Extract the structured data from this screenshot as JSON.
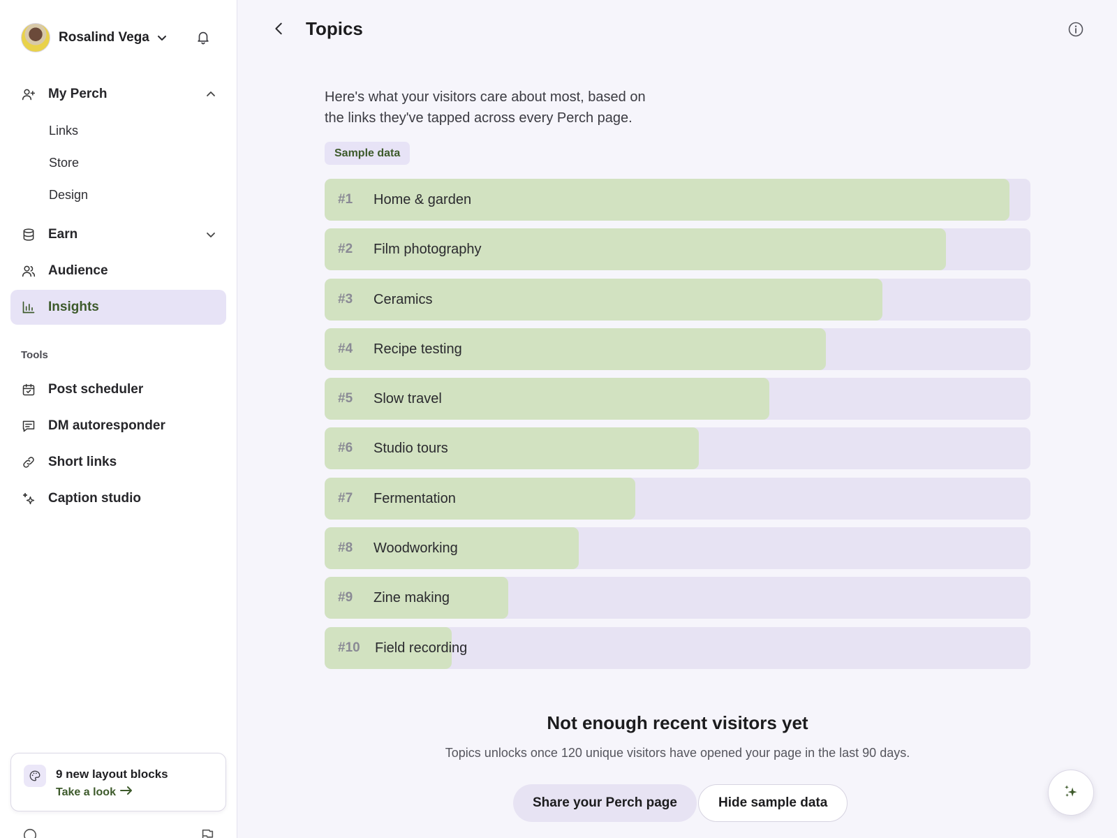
{
  "profile": {
    "name": "Rosalind Vega"
  },
  "nav": {
    "my_perch": {
      "label": "My Perch",
      "sub": [
        "Links",
        "Store",
        "Design"
      ]
    },
    "earn": "Earn",
    "audience": "Audience",
    "insights": "Insights"
  },
  "tools": {
    "label": "Tools",
    "items": [
      "Post scheduler",
      "DM autoresponder",
      "Short links",
      "Caption studio"
    ]
  },
  "promo": {
    "title": "9 new layout blocks",
    "link": "Take a look"
  },
  "header": {
    "title": "Topics"
  },
  "description": "Here's what your visitors care about most, based on the links they've tapped across every Perch page.",
  "badge": "Sample data",
  "topics": [
    {
      "rank": "#1",
      "name": "Home & garden",
      "share": 0.97
    },
    {
      "rank": "#2",
      "name": "Film photography",
      "share": 0.88
    },
    {
      "rank": "#3",
      "name": "Ceramics",
      "share": 0.79
    },
    {
      "rank": "#4",
      "name": "Recipe testing",
      "share": 0.71
    },
    {
      "rank": "#5",
      "name": "Slow travel",
      "share": 0.63
    },
    {
      "rank": "#6",
      "name": "Studio tours",
      "share": 0.53
    },
    {
      "rank": "#7",
      "name": "Fermentation",
      "share": 0.44
    },
    {
      "rank": "#8",
      "name": "Woodworking",
      "share": 0.36
    },
    {
      "rank": "#9",
      "name": "Zine making",
      "share": 0.26
    },
    {
      "rank": "#10",
      "name": "Field recording",
      "share": 0.18
    }
  ],
  "empty_state": {
    "title": "Not enough recent visitors yet",
    "text": "Topics unlocks once 120 unique visitors have opened your page in the last 90 days."
  },
  "actions": {
    "share": "Share your Perch page",
    "hide": "Hide sample data"
  },
  "colors": {
    "accent_green": "#3d5a2b",
    "bar_fill": "#d2e2c1",
    "bar_track": "#e7e3f3",
    "active_nav": "#e7e3f6"
  }
}
